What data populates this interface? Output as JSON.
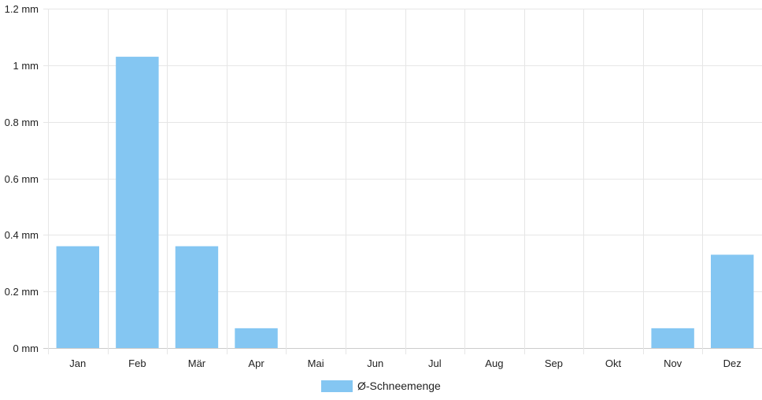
{
  "chart_data": {
    "type": "bar",
    "categories": [
      "Jan",
      "Feb",
      "Mär",
      "Apr",
      "Mai",
      "Jun",
      "Jul",
      "Aug",
      "Sep",
      "Okt",
      "Nov",
      "Dez"
    ],
    "series": [
      {
        "name": "Ø-Schneemenge",
        "values": [
          0.36,
          1.03,
          0.36,
          0.07,
          0,
          0,
          0,
          0,
          0,
          0,
          0.07,
          0.33
        ],
        "color": "#84C6F2"
      }
    ],
    "yunit": "mm",
    "ylim": [
      0,
      1.2
    ],
    "yticks": [
      0,
      0.2,
      0.4,
      0.6,
      0.8,
      1,
      1.2
    ],
    "ytick_labels": [
      "0 mm",
      "0.2 mm",
      "0.4 mm",
      "0.6 mm",
      "0.8 mm",
      "1 mm",
      "1.2 mm"
    ],
    "grid": true,
    "legend_position": "bottom"
  }
}
